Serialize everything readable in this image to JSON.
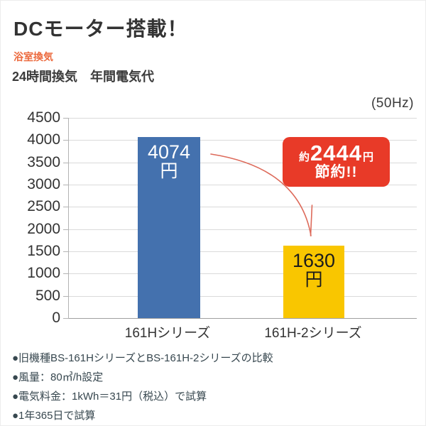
{
  "page": {
    "title": "DCモーター搭載！",
    "category_label": "浴室換気",
    "subtitle": "24時間換気　年間電気代"
  },
  "chart_data": {
    "type": "bar",
    "title": "24時間換気　年間電気代",
    "frequency_note": "(50Hz)",
    "categories": [
      "161Hシリーズ",
      "161H-2シリーズ"
    ],
    "values": [
      4074,
      1630
    ],
    "bar_value_labels": [
      {
        "amount": "4074",
        "unit": "円"
      },
      {
        "amount": "1630",
        "unit": "円"
      }
    ],
    "bar_colors": [
      "#4471ae",
      "#f9c600"
    ],
    "ylim": [
      0,
      4500
    ],
    "yticks": [
      0,
      500,
      1000,
      1500,
      2000,
      2500,
      3000,
      3500,
      4000,
      4500
    ],
    "grid": true,
    "legend_position": "none",
    "annotation": {
      "prefix": "約",
      "amount": "2444",
      "suffix": "円",
      "line2": "節約!!",
      "badge_color": "#e83a28",
      "arrow_color": "#dd6a5a"
    }
  },
  "footnotes": [
    "●旧機種BS-161HシリーズとBS-161H-2シリーズの比較",
    "●風量：80㎥/h設定",
    "●電気料金：1kWh＝31円（税込）で試算",
    "●1年365日で試算"
  ],
  "colors": {
    "bar_old": "#4471ae",
    "bar_new": "#f9c600",
    "badge": "#e83a28",
    "arrow": "#dd6a5a",
    "accent_label": "#ec6a3e",
    "title_text": "#333333"
  }
}
